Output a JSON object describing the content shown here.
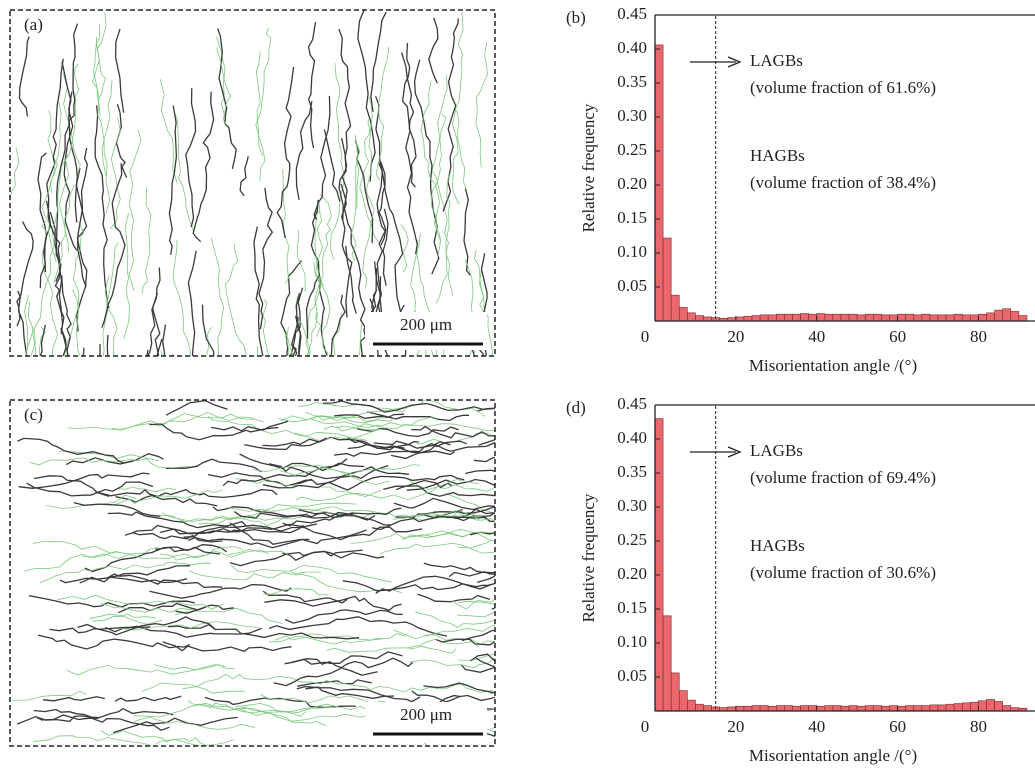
{
  "panels": [
    {
      "label": "(a)",
      "scale_bar": "200 μm"
    },
    {
      "label": "(c)",
      "scale_bar": "200 μm"
    }
  ],
  "chart_data": [
    {
      "type": "histogram",
      "panel_label": "(b)",
      "x_label": "Misorientation angle /(°)",
      "y_label": "Relative frequency",
      "bins": [
        0,
        2,
        4,
        6,
        8,
        10,
        12,
        14,
        16,
        18,
        20,
        22,
        24,
        26,
        28,
        30,
        32,
        34,
        36,
        38,
        40,
        42,
        44,
        46,
        48,
        50,
        52,
        54,
        56,
        58,
        60,
        62,
        64,
        66,
        68,
        70,
        72,
        74,
        76,
        78,
        80,
        82,
        84,
        86,
        88,
        90,
        92
      ],
      "values": [
        0.406,
        0.122,
        0.038,
        0.02,
        0.012,
        0.008,
        0.006,
        0.005,
        0.004,
        0.005,
        0.006,
        0.007,
        0.008,
        0.009,
        0.009,
        0.01,
        0.01,
        0.01,
        0.011,
        0.01,
        0.011,
        0.01,
        0.01,
        0.01,
        0.01,
        0.009,
        0.01,
        0.01,
        0.009,
        0.009,
        0.01,
        0.01,
        0.009,
        0.01,
        0.009,
        0.009,
        0.009,
        0.01,
        0.009,
        0.009,
        0.01,
        0.012,
        0.016,
        0.018,
        0.014,
        0.008
      ],
      "color": "#e8686e",
      "threshold": 15,
      "annotations": [
        "LAGBs",
        "(volume fraction of 61.6%)",
        "HAGBs",
        "(volume fraction of 38.4%)"
      ],
      "xlim": [
        0,
        93
      ],
      "ylim": [
        0,
        0.45
      ],
      "xticks": [
        0,
        20,
        40,
        60,
        80
      ],
      "yticks": [
        0.05,
        {
          "value": 0.1,
          "label": "0.10"
        },
        0.15,
        {
          "value": 0.2,
          "label": "0.20"
        },
        0.25,
        {
          "value": 0.3,
          "label": "0.30"
        },
        0.35,
        {
          "value": 0.4,
          "label": "0.40"
        },
        0.45
      ]
    },
    {
      "type": "histogram",
      "panel_label": "(d)",
      "x_label": "Misorientation angle /(°)",
      "y_label": "Relative frequency",
      "bins": [
        0,
        2,
        4,
        6,
        8,
        10,
        12,
        14,
        16,
        18,
        20,
        22,
        24,
        26,
        28,
        30,
        32,
        34,
        36,
        38,
        40,
        42,
        44,
        46,
        48,
        50,
        52,
        54,
        56,
        58,
        60,
        62,
        64,
        66,
        68,
        70,
        72,
        74,
        76,
        78,
        80,
        82,
        84,
        86,
        88,
        90,
        92
      ],
      "values": [
        0.43,
        0.14,
        0.056,
        0.03,
        0.016,
        0.01,
        0.008,
        0.006,
        0.005,
        0.006,
        0.007,
        0.007,
        0.008,
        0.008,
        0.007,
        0.008,
        0.008,
        0.007,
        0.008,
        0.008,
        0.007,
        0.008,
        0.008,
        0.007,
        0.008,
        0.007,
        0.008,
        0.008,
        0.007,
        0.008,
        0.007,
        0.008,
        0.008,
        0.008,
        0.009,
        0.009,
        0.01,
        0.011,
        0.012,
        0.013,
        0.015,
        0.017,
        0.014,
        0.008,
        0.005,
        0.004
      ],
      "color": "#e8686e",
      "threshold": 15,
      "annotations": [
        "LAGBs",
        "(volume fraction of 69.4%)",
        "HAGBs",
        "(volume fraction of 30.6%)"
      ],
      "xlim": [
        0,
        93
      ],
      "ylim": [
        0,
        0.45
      ],
      "xticks": [
        0,
        20,
        40,
        60,
        80
      ],
      "yticks": [
        0.05,
        {
          "value": 0.1,
          "label": "0.10"
        },
        0.15,
        {
          "value": 0.2,
          "label": "0.20"
        },
        0.25,
        {
          "value": 0.3,
          "label": "0.30"
        },
        0.35,
        {
          "value": 0.4,
          "label": "0.40"
        },
        0.45
      ]
    }
  ]
}
